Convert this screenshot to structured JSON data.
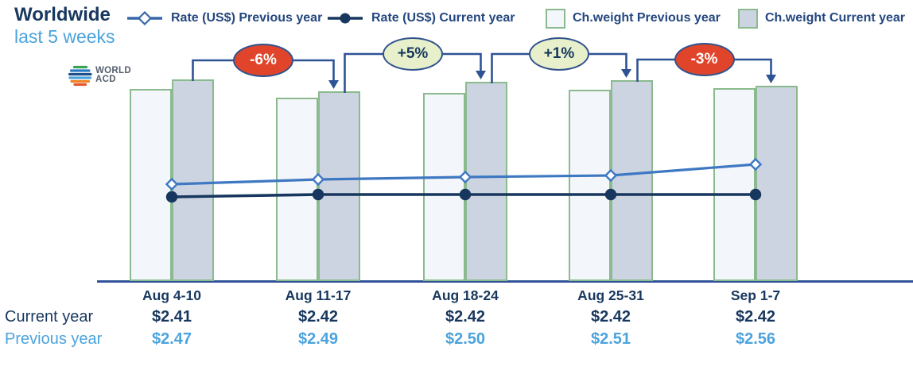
{
  "header": {
    "title": "Worldwide",
    "subtitle": "last 5 weeks"
  },
  "logo": {
    "line1": "WORLD",
    "line2": "ACD"
  },
  "legend": {
    "items": [
      {
        "id": "rate-previous-year",
        "label": "Rate (US$) Previous year"
      },
      {
        "id": "rate-current-year",
        "label": "Rate (US$) Current year"
      },
      {
        "id": "chweight-previous-year",
        "label": "Ch.weight Previous year"
      },
      {
        "id": "chweight-current-year",
        "label": "Ch.weight Current year"
      }
    ]
  },
  "chart_data": {
    "type": "bar+line combo",
    "categories": [
      "Aug 4-10",
      "Aug 11-17",
      "Aug 18-24",
      "Aug 25-31",
      "Sep 1-7"
    ],
    "series": [
      {
        "name": "Rate (US$) Current year",
        "type": "line",
        "marker": "filled-circle",
        "color": "#17375E",
        "values": [
          2.41,
          2.42,
          2.42,
          2.42,
          2.42
        ]
      },
      {
        "name": "Rate (US$) Previous year",
        "type": "line",
        "marker": "open-diamond",
        "color": "#3E78C2",
        "values": [
          2.47,
          2.49,
          2.5,
          2.51,
          2.56
        ]
      },
      {
        "name": "Ch.weight Current year",
        "type": "bar",
        "color": "#CCD4E2",
        "note": "relative index estimated from bar heights, Aug 4-10 current year = 100 (no value axis shown)",
        "values": [
          100,
          94,
          98.7,
          99.7,
          96.7
        ]
      },
      {
        "name": "Ch.weight Previous year",
        "type": "bar",
        "color": "#F3F6FA",
        "note": "relative index estimated from bar heights (no value axis shown)",
        "values": [
          95.3,
          91.0,
          93.4,
          94.9,
          95.7
        ]
      }
    ],
    "wow_changes": [
      {
        "from": "Aug 4-10",
        "to": "Aug 11-17",
        "label": "-6%",
        "sentiment": "negative"
      },
      {
        "from": "Aug 11-17",
        "to": "Aug 18-24",
        "label": "+5%",
        "sentiment": "positive"
      },
      {
        "from": "Aug 18-24",
        "to": "Aug 25-31",
        "label": "+1%",
        "sentiment": "positive"
      },
      {
        "from": "Aug 25-31",
        "to": "Sep 1-7",
        "label": "-3%",
        "sentiment": "negative"
      }
    ],
    "legend_position": "top",
    "grid": false,
    "value_axis": "none (weight bars unlabeled); rate values listed in table below chart"
  },
  "table": {
    "rows": [
      {
        "label": "Current year",
        "values": [
          "$2.41",
          "$2.42",
          "$2.42",
          "$2.42",
          "$2.42"
        ]
      },
      {
        "label": "Previous year",
        "values": [
          "$2.47",
          "$2.49",
          "$2.50",
          "$2.51",
          "$2.56"
        ]
      }
    ]
  },
  "colors": {
    "navy": "#17375E",
    "bracket_arrow": "#2E5395",
    "light_blue": "#4BA3DD",
    "prev_rate_line": "#3E78C2",
    "bar_border_green": "#8ABA8E",
    "bar_prev_fill": "#F3F6FA",
    "bar_curr_fill": "#CCD4E2",
    "badge_negative_fill": "#E0452B",
    "badge_negative_text": "#FFFFFF",
    "badge_positive_fill": "#E7F0CB",
    "badge_positive_text": "#17375E",
    "badge_border": "#31538C"
  }
}
